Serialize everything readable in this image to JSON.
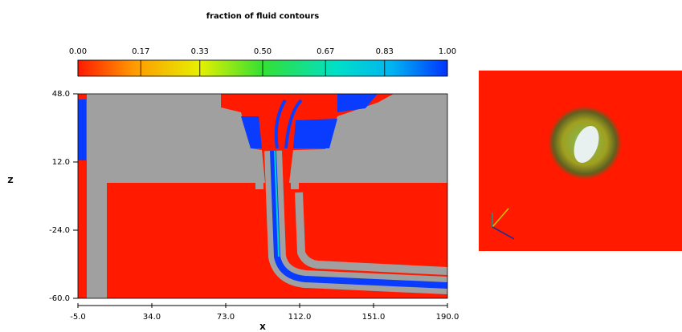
{
  "chart_data": {
    "type": "contour",
    "title": "fraction of fluid contours",
    "x_label": "X",
    "y_label": "Z",
    "xlim": [
      -5,
      190
    ],
    "xticks": [
      {
        "value": -5,
        "label": "-5.0"
      },
      {
        "value": 34,
        "label": "34.0"
      },
      {
        "value": 73,
        "label": "73.0"
      },
      {
        "value": 112,
        "label": "112.0"
      },
      {
        "value": 151,
        "label": "151.0"
      },
      {
        "value": 190,
        "label": "190.0"
      }
    ],
    "ylim": [
      -60,
      48
    ],
    "yticks": [
      {
        "value": -60,
        "label": "-60.0"
      },
      {
        "value": -24,
        "label": "-24.0"
      },
      {
        "value": 12,
        "label": "12.0"
      },
      {
        "value": 48,
        "label": "48.0"
      }
    ],
    "colorbar": {
      "lim": [
        0,
        1
      ],
      "ticks": [
        {
          "value": 0,
          "label": "0.00"
        },
        {
          "value": 0.17,
          "label": "0.17"
        },
        {
          "value": 0.33,
          "label": "0.33"
        },
        {
          "value": 0.5,
          "label": "0.50"
        },
        {
          "value": 0.67,
          "label": "0.67"
        },
        {
          "value": 0.83,
          "label": "0.83"
        },
        {
          "value": 1,
          "label": "1.00"
        }
      ]
    }
  }
}
